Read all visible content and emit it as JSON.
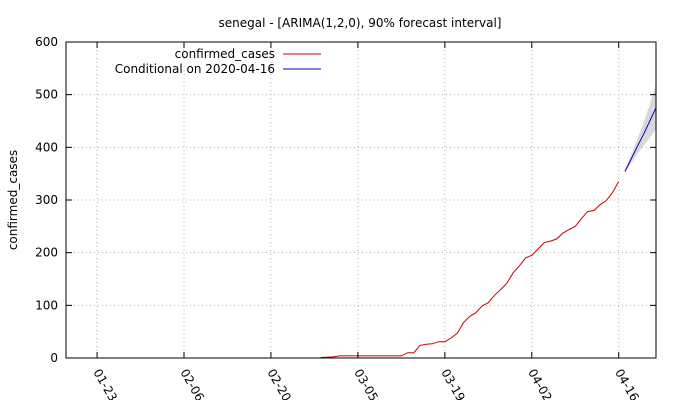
{
  "chart_data": {
    "type": "line",
    "title": "senegal -  [ARIMA(1,2,0), 90% forecast interval]",
    "xlabel": "",
    "ylabel": "confirmed_cases",
    "x_range": [
      "2020-01-18",
      "2020-04-22"
    ],
    "ylim": [
      0,
      600
    ],
    "yticks": [
      0,
      100,
      200,
      300,
      400,
      500,
      600
    ],
    "xticks": [
      "2020-01-23",
      "2020-02-06",
      "2020-02-20",
      "2020-03-05",
      "2020-03-19",
      "2020-04-02",
      "2020-04-16"
    ],
    "xtick_labels": [
      "01-23",
      "02-06",
      "02-20",
      "03-05",
      "03-19",
      "04-02",
      "04-16"
    ],
    "grid": true,
    "legend_position": "top-left",
    "colors": {
      "actual": "#cc0000",
      "forecast": "#0000cc",
      "interval": "#d8d8d8"
    },
    "series": [
      {
        "name": "confirmed_cases",
        "x": [
          "2020-02-28",
          "2020-03-01",
          "2020-03-02",
          "2020-03-03",
          "2020-03-04",
          "2020-03-05",
          "2020-03-06",
          "2020-03-07",
          "2020-03-08",
          "2020-03-09",
          "2020-03-10",
          "2020-03-11",
          "2020-03-12",
          "2020-03-13",
          "2020-03-14",
          "2020-03-15",
          "2020-03-16",
          "2020-03-17",
          "2020-03-18",
          "2020-03-19",
          "2020-03-20",
          "2020-03-21",
          "2020-03-22",
          "2020-03-23",
          "2020-03-24",
          "2020-03-25",
          "2020-03-26",
          "2020-03-27",
          "2020-03-28",
          "2020-03-29",
          "2020-03-30",
          "2020-03-31",
          "2020-04-01",
          "2020-04-02",
          "2020-04-03",
          "2020-04-04",
          "2020-04-05",
          "2020-04-06",
          "2020-04-07",
          "2020-04-08",
          "2020-04-09",
          "2020-04-10",
          "2020-04-11",
          "2020-04-12",
          "2020-04-13",
          "2020-04-14",
          "2020-04-15",
          "2020-04-16"
        ],
        "values": [
          1,
          2,
          4,
          4,
          4,
          4,
          4,
          4,
          4,
          4,
          4,
          4,
          4,
          10,
          10,
          24,
          26,
          27,
          31,
          31,
          38,
          47,
          67,
          79,
          86,
          99,
          105,
          119,
          130,
          142,
          162,
          175,
          190,
          195,
          207,
          219,
          222,
          226,
          237,
          244,
          250,
          265,
          278,
          280,
          291,
          299,
          314,
          335
        ]
      },
      {
        "name": "Conditional on 2020-04-16",
        "x": [
          "2020-04-17",
          "2020-04-18",
          "2020-04-19",
          "2020-04-20",
          "2020-04-21",
          "2020-04-22"
        ],
        "values": [
          354,
          378,
          402,
          425,
          450,
          475
        ],
        "lower": [
          352,
          370,
          388,
          403,
          418,
          435
        ],
        "upper": [
          356,
          386,
          416,
          447,
          482,
          520
        ]
      }
    ]
  }
}
